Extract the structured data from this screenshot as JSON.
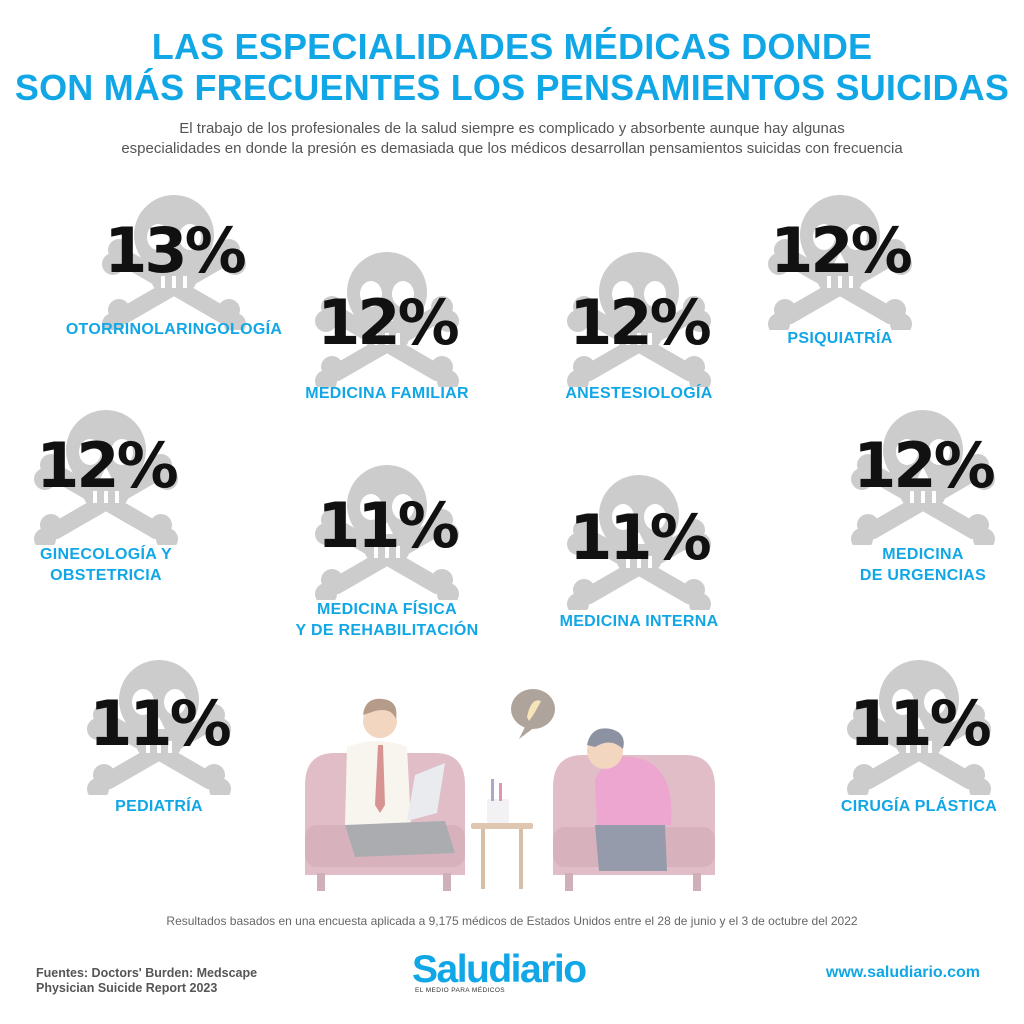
{
  "header": {
    "title_line1": "LAS ESPECIALIDADES MÉDICAS DONDE",
    "title_line2": "SON MÁS FRECUENTES LOS PENSAMIENTOS SUICIDAS",
    "subtitle_line1": "El trabajo de los profesionales de la salud siempre es complicado y absorbente aunque hay algunas",
    "subtitle_line2": "especialidades en donde la presión es demasiada que los médicos desarrollan pensamientos suicidas con frecuencia"
  },
  "stats": [
    {
      "pct": "13%",
      "label_line1": "OTORRINOLARINGOLOGÍA",
      "label_line2": ""
    },
    {
      "pct": "12%",
      "label_line1": "MEDICINA FAMILIAR",
      "label_line2": ""
    },
    {
      "pct": "12%",
      "label_line1": "ANESTESIOLOGÍA",
      "label_line2": ""
    },
    {
      "pct": "12%",
      "label_line1": "PSIQUIATRÍA",
      "label_line2": ""
    },
    {
      "pct": "12%",
      "label_line1": "GINECOLOGÍA Y",
      "label_line2": "OBSTETRICIA"
    },
    {
      "pct": "11%",
      "label_line1": "MEDICINA FÍSICA",
      "label_line2": "Y DE REHABILITACIÓN"
    },
    {
      "pct": "11%",
      "label_line1": "MEDICINA INTERNA",
      "label_line2": ""
    },
    {
      "pct": "12%",
      "label_line1": "MEDICINA",
      "label_line2": "DE URGENCIAS"
    },
    {
      "pct": "11%",
      "label_line1": "PEDIATRÍA",
      "label_line2": ""
    },
    {
      "pct": "11%",
      "label_line1": "CIRUGÍA PLÁSTICA",
      "label_line2": ""
    }
  ],
  "footer": {
    "note": "Resultados basados en una encuesta aplicada a 9,175 médicos de Estados Unidos entre el 28 de junio y el 3 de octubre del 2022",
    "sources_line1": "Fuentes: Doctors' Burden: Medscape",
    "sources_line2": "Physician Suicide Report 2023",
    "logo_word": "Saludiario",
    "logo_tagline": "EL MEDIO PARA MÉDICOS",
    "website": "www.saludiario.com"
  },
  "colors": {
    "accent": "#11a7e6",
    "percent": "#111111",
    "skull": "#cccccc"
  },
  "icons": {
    "stat_icon": "skull-crossbones-icon",
    "illustration": "therapy-session-illustration"
  }
}
